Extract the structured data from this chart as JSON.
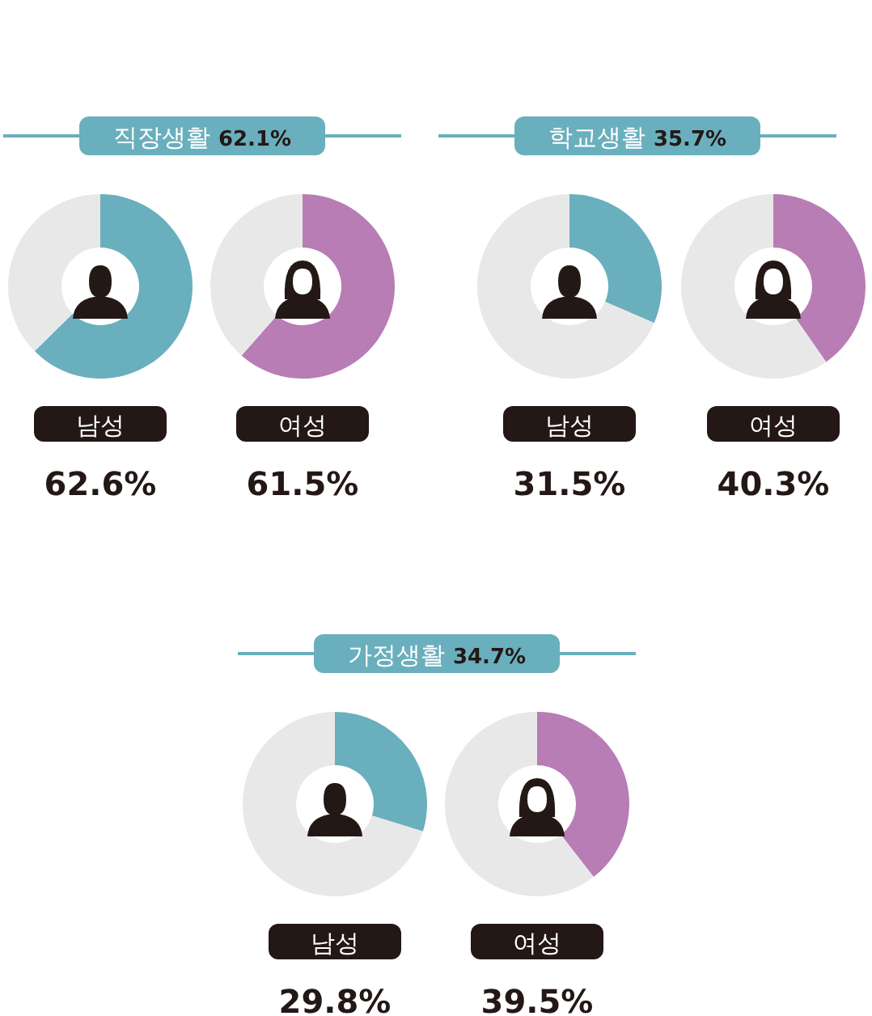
{
  "chart_data": [
    {
      "type": "other",
      "title": "직장생활",
      "subtitle": "62.1%"
    },
    {
      "type": "donut",
      "xlabel": "남성",
      "categories": [
        null,
        null
      ],
      "values": [
        62.6,
        37.4
      ],
      "annotations": [
        "62.6%"
      ],
      "colors": [
        "#6aafbd",
        "#e8e8e8"
      ]
    },
    {
      "type": "donut",
      "xlabel": "여성",
      "categories": [
        null,
        null
      ],
      "values": [
        61.5,
        38.5
      ],
      "annotations": [
        "61.5%"
      ],
      "colors": [
        "#b87db5",
        "#e8e8e8"
      ]
    },
    {
      "type": "other",
      "title": "학교생활",
      "subtitle": "35.7%"
    },
    {
      "type": "donut",
      "xlabel": "남성",
      "categories": [
        null,
        null
      ],
      "values": [
        31.5,
        68.5
      ],
      "annotations": [
        "31.5%"
      ],
      "colors": [
        "#6aafbd",
        "#e8e8e8"
      ]
    },
    {
      "type": "donut",
      "xlabel": "여성",
      "categories": [
        null,
        null
      ],
      "values": [
        40.3,
        59.7
      ],
      "annotations": [
        "40.3%"
      ],
      "colors": [
        "#b87db5",
        "#e8e8e8"
      ]
    },
    {
      "type": "other",
      "title": "가정생활",
      "subtitle": "34.7%"
    },
    {
      "type": "donut",
      "xlabel": "남성",
      "categories": [
        null,
        null
      ],
      "values": [
        29.8,
        70.2
      ],
      "annotations": [
        "29.8%"
      ],
      "colors": [
        "#6aafbd",
        "#e8e8e8"
      ]
    },
    {
      "type": "donut",
      "xlabel": "여성",
      "categories": [
        null,
        null
      ],
      "values": [
        39.5,
        60.5
      ],
      "annotations": [
        "39.5%"
      ],
      "colors": [
        "#b87db5",
        "#e8e8e8"
      ]
    }
  ]
}
